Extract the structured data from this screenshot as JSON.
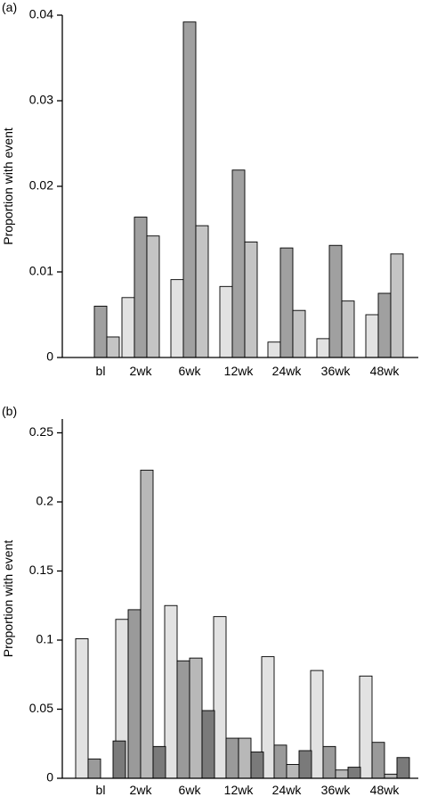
{
  "chart_data": [
    {
      "type": "bar",
      "panel_label": "(a)",
      "ylabel": "Proportion with event",
      "xlabel": "",
      "categories": [
        "bl",
        "2wk",
        "6wk",
        "12wk",
        "24wk",
        "36wk",
        "48wk"
      ],
      "ylim": [
        0,
        0.04
      ],
      "yticks": [
        0,
        0.01,
        0.02,
        0.03,
        0.04
      ],
      "ytick_labels": [
        "0",
        "0.01",
        "0.02",
        "0.03",
        "0.04"
      ],
      "grid": false,
      "series": [
        {
          "color": "#e2e2e2",
          "values": [
            0.0,
            0.007,
            0.0091,
            0.0083,
            0.0018,
            0.0022,
            0.005
          ]
        },
        {
          "color": "#a0a0a0",
          "values": [
            0.006,
            0.0164,
            0.0392,
            0.0219,
            0.0128,
            0.0131,
            0.0075
          ]
        },
        {
          "color": "#c4c4c4",
          "values": [
            0.0024,
            0.0142,
            0.0154,
            0.0135,
            0.0055,
            0.0066,
            0.0121
          ]
        }
      ]
    },
    {
      "type": "bar",
      "panel_label": "(b)",
      "ylabel": "Proportion with event",
      "xlabel": "",
      "categories": [
        "bl",
        "2wk",
        "6wk",
        "12wk",
        "24wk",
        "36wk",
        "48wk"
      ],
      "ylim": [
        0,
        0.26
      ],
      "yticks": [
        0,
        0.05,
        0.1,
        0.15,
        0.2,
        0.25
      ],
      "ytick_labels": [
        "0",
        "0.05",
        "0.1",
        "0.15",
        "0.2",
        "0.25"
      ],
      "grid": false,
      "series": [
        {
          "color": "#e2e2e2",
          "values": [
            0.101,
            0.115,
            0.125,
            0.117,
            0.088,
            0.078,
            0.074
          ]
        },
        {
          "color": "#9a9a9a",
          "values": [
            0.014,
            0.122,
            0.085,
            0.029,
            0.024,
            0.023,
            0.026
          ]
        },
        {
          "color": "#b8b8b8",
          "values": [
            0.0,
            0.223,
            0.087,
            0.029,
            0.01,
            0.006,
            0.003
          ]
        },
        {
          "color": "#7a7a7a",
          "values": [
            0.027,
            0.023,
            0.049,
            0.019,
            0.02,
            0.008,
            0.015
          ]
        }
      ]
    }
  ]
}
